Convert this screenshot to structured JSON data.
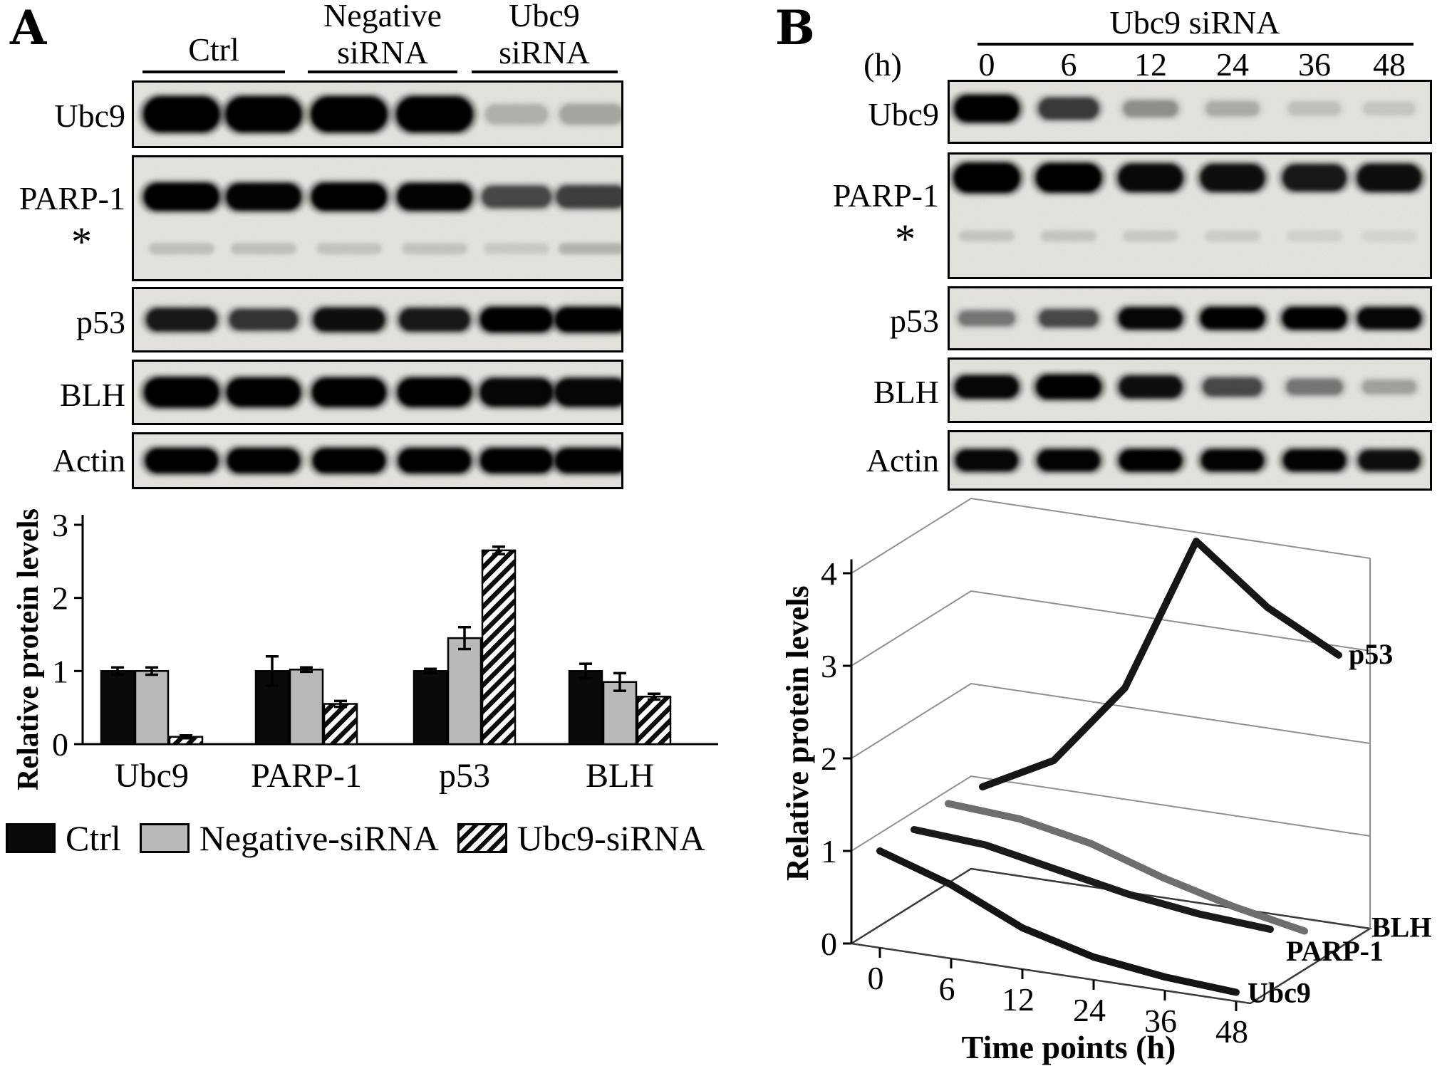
{
  "panel_a": {
    "label": "A",
    "groups": [
      {
        "label": "Ctrl",
        "lines": [
          "Ctrl"
        ]
      },
      {
        "label": "Negative siRNA",
        "lines": [
          "Negative",
          "siRNA"
        ]
      },
      {
        "label": "Ubc9 siRNA",
        "lines": [
          "Ubc9",
          "siRNA"
        ]
      }
    ],
    "blots": [
      {
        "label": "Ubc9",
        "bands": [
          1,
          1,
          1,
          1,
          0.12,
          0.16
        ]
      },
      {
        "label": "PARP-1",
        "asterisk": "*",
        "bands": [
          0.95,
          0.92,
          0.95,
          0.92,
          0.55,
          0.6
        ],
        "sub_bands": [
          0.15,
          0.15,
          0.13,
          0.13,
          0.1,
          0.2
        ]
      },
      {
        "label": "p53",
        "bands": [
          0.8,
          0.65,
          0.85,
          0.8,
          0.95,
          0.95
        ]
      },
      {
        "label": "BLH",
        "bands": [
          1,
          0.95,
          0.95,
          0.95,
          0.9,
          0.9
        ]
      },
      {
        "label": "Actin",
        "bands": [
          0.95,
          0.95,
          0.95,
          0.95,
          0.95,
          0.95
        ]
      }
    ],
    "legend": [
      {
        "label": "Ctrl",
        "style": "solid-black"
      },
      {
        "label": "Negative-siRNA",
        "style": "solid-gray"
      },
      {
        "label": "Ubc9-siRNA",
        "style": "hatched"
      }
    ]
  },
  "panel_b": {
    "label": "B",
    "header": "Ubc9 siRNA",
    "time_unit": "(h)",
    "time_points": [
      "0",
      "6",
      "12",
      "24",
      "36",
      "48"
    ],
    "blots": [
      {
        "label": "Ubc9",
        "bands": [
          1,
          0.62,
          0.25,
          0.14,
          0.06,
          0.04
        ]
      },
      {
        "label": "PARP-1",
        "asterisk": "*",
        "bands": [
          1,
          0.95,
          0.88,
          0.85,
          0.8,
          0.85
        ],
        "sub_bands": [
          0.12,
          0.12,
          0.1,
          0.09,
          0.07,
          0.06
        ]
      },
      {
        "label": "p53",
        "bands": [
          0.35,
          0.55,
          0.9,
          0.95,
          0.95,
          0.9
        ]
      },
      {
        "label": "BLH",
        "bands": [
          0.9,
          1,
          0.85,
          0.55,
          0.35,
          0.18
        ]
      },
      {
        "label": "Actin",
        "bands": [
          0.9,
          0.92,
          0.95,
          0.92,
          0.92,
          0.85
        ]
      }
    ]
  },
  "chart_data": [
    {
      "type": "bar",
      "panel": "A",
      "title": "",
      "ylabel": "Relative protein levels",
      "xlabel": "",
      "ylim": [
        0,
        3
      ],
      "yticks": [
        0,
        1,
        2,
        3
      ],
      "grid": false,
      "legend_position": "bottom",
      "categories": [
        "Ubc9",
        "PARP-1",
        "p53",
        "BLH"
      ],
      "series": [
        {
          "name": "Ctrl",
          "style": "black",
          "color": "#0a0a0a",
          "values": [
            1.0,
            1.0,
            1.0,
            1.0
          ],
          "errors": [
            0.05,
            0.2,
            0.03,
            0.1
          ]
        },
        {
          "name": "Negative-siRNA",
          "style": "gray",
          "color": "#b9b9b9",
          "values": [
            1.0,
            1.02,
            1.45,
            0.85
          ],
          "errors": [
            0.05,
            0.03,
            0.15,
            0.12
          ]
        },
        {
          "name": "Ubc9-siRNA",
          "style": "hatched",
          "color": "black-white-diagonal-hatch",
          "values": [
            0.1,
            0.55,
            2.65,
            0.65
          ],
          "errors": [
            0.02,
            0.04,
            0.05,
            0.04
          ]
        }
      ]
    },
    {
      "type": "line",
      "style_3d": true,
      "panel": "B",
      "title": "",
      "ylabel": "Relative protein levels",
      "xlabel": "Time points (h)",
      "ylim": [
        0,
        4
      ],
      "yticks": [
        0,
        1,
        2,
        3,
        4
      ],
      "grid": true,
      "legend_position": "inline-right",
      "x": [
        0,
        6,
        12,
        24,
        36,
        48
      ],
      "series": [
        {
          "name": "Ubc9",
          "color": "#141414",
          "depth": 0,
          "values": [
            1.0,
            0.75,
            0.4,
            0.2,
            0.1,
            0.05
          ]
        },
        {
          "name": "PARP-1",
          "color": "#1a1a1a",
          "depth": 1,
          "values": [
            1.0,
            0.95,
            0.8,
            0.65,
            0.55,
            0.5
          ]
        },
        {
          "name": "BLH",
          "color": "#6e6e6e",
          "depth": 2,
          "values": [
            1.05,
            1.0,
            0.85,
            0.6,
            0.4,
            0.25
          ]
        },
        {
          "name": "p53",
          "color": "#161616",
          "depth": 3,
          "values": [
            1.0,
            1.4,
            2.3,
            4.0,
            3.4,
            3.0
          ]
        }
      ]
    }
  ]
}
